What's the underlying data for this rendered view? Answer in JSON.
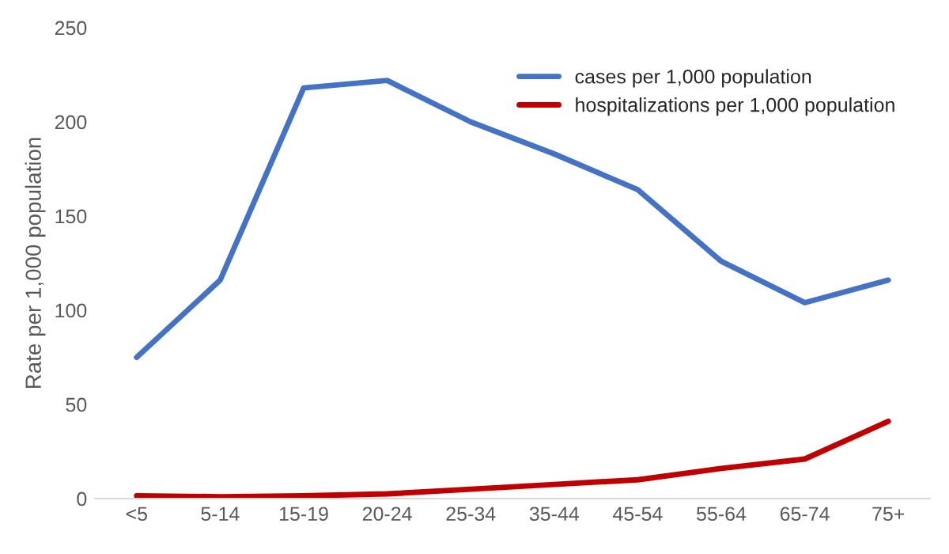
{
  "chart_data": {
    "type": "line",
    "ylabel": "Rate per 1,000 population",
    "categories": [
      "<5",
      "5-14",
      "15-19",
      "20-24",
      "25-34",
      "35-44",
      "45-54",
      "55-64",
      "65-74",
      "75+"
    ],
    "series": [
      {
        "name": "cases per 1,000 population",
        "color": "#4472c4",
        "values": [
          75,
          116,
          218,
          222,
          200,
          183,
          164,
          126,
          104,
          116
        ]
      },
      {
        "name": "hospitalizations per 1,000 population",
        "color": "#c00000",
        "values": [
          1.5,
          1,
          1.5,
          2.5,
          5,
          7.5,
          10,
          16,
          21,
          41
        ]
      }
    ],
    "ylim": [
      0,
      250
    ],
    "yticks": [
      0,
      50,
      100,
      150,
      200,
      250
    ],
    "grid": false,
    "legend": "top right",
    "marker": "none",
    "line_style": "solid"
  }
}
